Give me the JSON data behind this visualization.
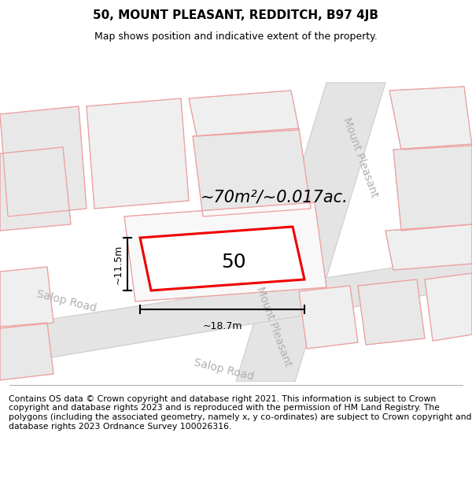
{
  "title": "50, MOUNT PLEASANT, REDDITCH, B97 4JB",
  "subtitle": "Map shows position and indicative extent of the property.",
  "area_text": "~70m²/~0.017ac.",
  "number_label": "50",
  "dim_width": "~18.7m",
  "dim_height": "~11.5m",
  "road_label_salop_upper": "Salop Road",
  "road_label_salop_lower": "Salop Road",
  "road_label_mount_upper": "Mount Pleasant",
  "road_label_mount_lower": "Mount Pleasant",
  "footer": "Contains OS data © Crown copyright and database right 2021. This information is subject to Crown copyright and database rights 2023 and is reproduced with the permission of HM Land Registry. The polygons (including the associated geometry, namely x, y co-ordinates) are subject to Crown copyright and database rights 2023 Ordnance Survey 100026316.",
  "map_bg": "#ffffff",
  "block_fill": "#e8e8e8",
  "block_edge": "#d0d0d0",
  "block_fill2": "#efefef",
  "road_fill": "#e4e4e4",
  "road_edge": "#cccccc",
  "plot_fill": "#f0f0f0",
  "plot_stroke": "#ee0000",
  "pink": "#f0a0a0",
  "road_label_color": "#b0b0b0",
  "title_fontsize": 11,
  "subtitle_fontsize": 9,
  "footer_fontsize": 7.8,
  "area_fontsize": 15,
  "number_fontsize": 18,
  "dim_fontsize": 9,
  "road_label_fontsize": 10
}
